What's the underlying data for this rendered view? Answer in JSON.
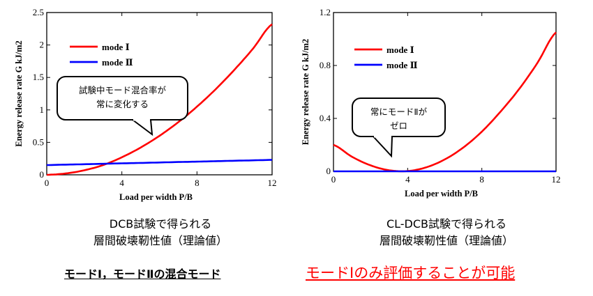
{
  "chart_data": [
    {
      "type": "line",
      "xlabel": "Load per width  P/B",
      "ylabel": "Energy release rate  G  kJ/m2",
      "xlim": [
        0,
        12
      ],
      "ylim": [
        0,
        2.5
      ],
      "xticks": [
        "0",
        "4",
        "8",
        "12"
      ],
      "yticks": [
        "0",
        "0.5",
        "1",
        "1.5",
        "2",
        "2.5"
      ],
      "x": [
        0,
        1,
        2,
        3,
        4,
        5,
        6,
        7,
        8,
        9,
        10,
        11,
        12
      ],
      "series": [
        {
          "name": "mode Ⅰ",
          "color": "#ff0000",
          "values": [
            0.0,
            0.02,
            0.07,
            0.15,
            0.27,
            0.42,
            0.6,
            0.81,
            1.05,
            1.32,
            1.62,
            1.95,
            2.32
          ]
        },
        {
          "name": "mode Ⅱ",
          "color": "#0000ff",
          "values": [
            0.15,
            0.157,
            0.163,
            0.17,
            0.177,
            0.183,
            0.19,
            0.197,
            0.203,
            0.21,
            0.217,
            0.223,
            0.23
          ]
        }
      ],
      "legend": "top-left",
      "callout": [
        "試験中モード混合率が",
        "常に変化する"
      ]
    },
    {
      "type": "line",
      "xlabel": "Load per width  P/B",
      "ylabel": "Energy release rate  G  kJ/m2",
      "xlim": [
        0,
        12
      ],
      "ylim": [
        0,
        1.2
      ],
      "xticks": [
        "0",
        "4",
        "8",
        "12"
      ],
      "yticks": [
        "0",
        "0.4",
        "0.8",
        "1.2"
      ],
      "x": [
        0,
        1,
        2,
        3,
        4,
        5,
        6,
        7,
        8,
        9,
        10,
        11,
        12
      ],
      "series": [
        {
          "name": "mode Ⅰ",
          "color": "#ff0000",
          "values": [
            0.2,
            0.11,
            0.045,
            0.008,
            0.002,
            0.03,
            0.09,
            0.18,
            0.3,
            0.45,
            0.62,
            0.82,
            1.05
          ]
        },
        {
          "name": "mode Ⅱ",
          "color": "#0000ff",
          "values": [
            0,
            0,
            0,
            0,
            0,
            0,
            0,
            0,
            0,
            0,
            0,
            0,
            0
          ]
        }
      ],
      "legend": "top-left",
      "callout": [
        "常にモードⅡが",
        "ゼロ"
      ]
    }
  ],
  "captions": {
    "left": [
      "DCB試験で得られる",
      "層間破壊靭性値（理論値）"
    ],
    "right": [
      "CL-DCB試験で得られる",
      "層間破壊靭性値（理論値）"
    ],
    "bottom_left": "モードⅠ，モードⅡの混合モード",
    "bottom_right": "モードⅠのみ評価することが可能"
  },
  "colors": {
    "mode1": "#ff0000",
    "mode2": "#0000ff",
    "highlight": "#ff0000"
  }
}
